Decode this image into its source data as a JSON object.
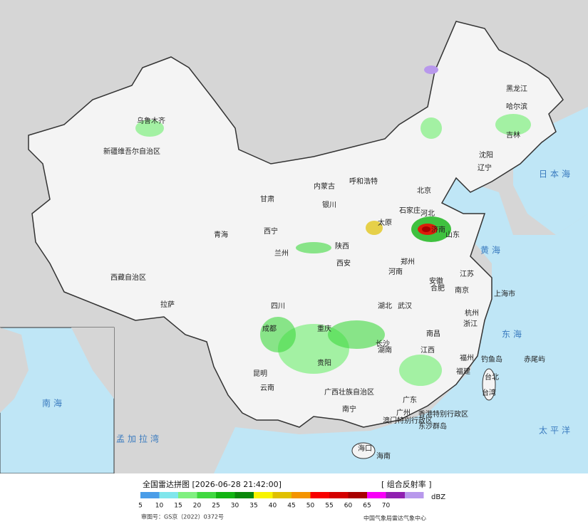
{
  "title": "全国雷达拼图 [2026-06-28 21:42:00]",
  "product": "[ 组合反射率 ]",
  "legend": {
    "unit": "dBZ",
    "values": [
      5,
      10,
      15,
      20,
      25,
      30,
      35,
      40,
      45,
      50,
      55,
      60,
      65,
      70
    ],
    "colors": [
      "#4a9de8",
      "#80e6ec",
      "#80f080",
      "#40d840",
      "#12b412",
      "#0a880a",
      "#f8f400",
      "#e0c000",
      "#f49400",
      "#f80000",
      "#d40000",
      "#a80000",
      "#f800f8",
      "#9020b0",
      "#b898ec"
    ]
  },
  "approval": "审图号：GS京（2022）0372号",
  "source": "中国气象局雷达气象中心",
  "places": [
    "黑龙江",
    "哈尔滨",
    "吉林",
    "新疆维吾尔自治区",
    "乌鲁木齐",
    "西藏自治区",
    "拉萨",
    "青海",
    "西宁",
    "甘肃",
    "兰州",
    "内蒙古",
    "呼和浩特",
    "北京",
    "石家庄",
    "太原",
    "河北",
    "辽宁",
    "沈阳",
    "山东",
    "济南",
    "河南",
    "郑州",
    "陕西",
    "西安",
    "银川",
    "四川",
    "成都",
    "重庆",
    "贵阳",
    "云南",
    "昆明",
    "湖北",
    "武汉",
    "湖南",
    "长沙",
    "江西",
    "南昌",
    "安徽",
    "合肥",
    "江苏",
    "南京",
    "上海市",
    "浙江",
    "杭州",
    "福建",
    "福州",
    "台北",
    "台湾",
    "广东",
    "广州",
    "广西壮族自治区",
    "南宁",
    "海南",
    "海口",
    "香港特别行政区",
    "澳门特别行政区",
    "黄海",
    "东海",
    "日本海",
    "太平洋",
    "孟加拉湾",
    "南海",
    "钓鱼岛",
    "赤尾屿",
    "东沙群岛"
  ]
}
